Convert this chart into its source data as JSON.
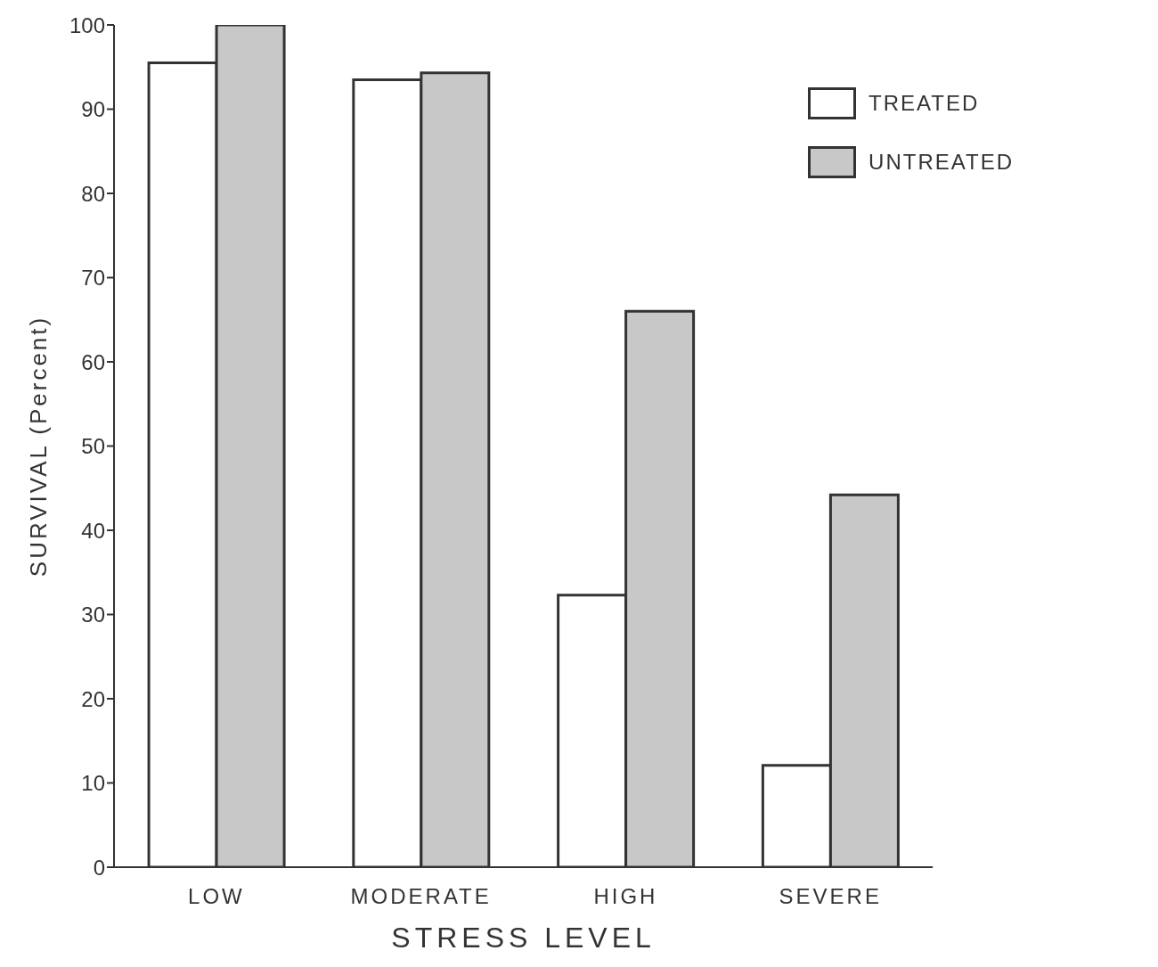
{
  "chart_data": {
    "type": "bar",
    "xlabel": "STRESS LEVEL",
    "ylabel": "SURVIVAL (Percent)",
    "categories": [
      "LOW",
      "MODERATE",
      "HIGH",
      "SEVERE"
    ],
    "series": [
      {
        "name": "TREATED",
        "color": "#ffffff",
        "values": [
          95.5,
          93.5,
          32.3,
          12.1
        ]
      },
      {
        "name": "UNTREATED",
        "color": "#c8c8c8",
        "values": [
          100,
          94.3,
          66,
          44.2
        ]
      }
    ],
    "ylim": [
      0,
      100
    ],
    "yticks": [
      0,
      10,
      20,
      30,
      40,
      50,
      60,
      70,
      80,
      90,
      100
    ],
    "grid": false,
    "legend": "top right"
  }
}
